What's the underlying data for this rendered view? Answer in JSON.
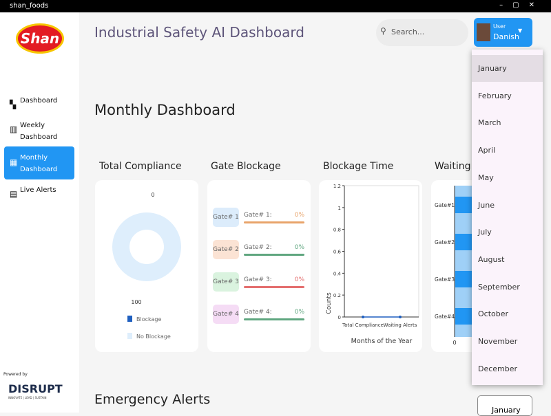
{
  "window": {
    "title": "shan_foods"
  },
  "sidebar": {
    "logo": "Shan",
    "nav": [
      {
        "label": "Dashboard"
      },
      {
        "label": "Weekly Dashboard"
      },
      {
        "label": "Monthly Dashboard"
      },
      {
        "label": "Live Alerts"
      }
    ],
    "active": 2,
    "powered_by": "Powered by",
    "brand": "DISRUPT",
    "brand_tag": "INNOVATE | LEAD | SUSTAIN"
  },
  "header": {
    "title": "Industrial Safety AI Dashboard",
    "search_placeholder": "Search...",
    "user_role": "User",
    "user_name": "Danish"
  },
  "page_title": "Monthly Dashboard",
  "compliance": {
    "title": "Total Compliance",
    "type": "pie",
    "series": [
      {
        "name": "Blockage",
        "color": "#1f5fbf",
        "value": 0,
        "label": "0"
      },
      {
        "name": "No Blockage",
        "color": "#deeefc",
        "value": 100,
        "label": "100"
      }
    ]
  },
  "gate_blockage": {
    "title": "Gate Blockage",
    "gates": [
      {
        "name": "Gate# 1",
        "label": "Gate# 1:",
        "percent": "0%",
        "bg": "#dcecfb",
        "color": "#e8a36a"
      },
      {
        "name": "Gate# 2",
        "label": "Gate# 2:",
        "percent": "0%",
        "bg": "#fbe3d4",
        "color": "#5fa67f"
      },
      {
        "name": "Gate# 3",
        "label": "Gate# 3:",
        "percent": "0%",
        "bg": "#daf3df",
        "color": "#e46f6f"
      },
      {
        "name": "Gate# 4",
        "label": "Gate# 4:",
        "percent": "0%",
        "bg": "#f5dcf5",
        "color": "#5fa67f"
      }
    ]
  },
  "blockage_time": {
    "title": "Blockage Time",
    "type": "line",
    "categories": [
      "Total Compliance",
      "Waiting Alerts"
    ],
    "values": [
      0,
      0
    ],
    "color": "#1f5fbf",
    "ylim": [
      0,
      1.2
    ],
    "yticks": [
      0,
      0.2,
      0.4,
      0.6,
      0.8,
      1,
      1.2
    ],
    "ylabel": "Counts",
    "xlabel": "Months of the Year"
  },
  "waiting_alerts": {
    "title": "Waiting Alerts",
    "categories": [
      "Gate#1",
      "Gate#2",
      "Gate#3",
      "Gate#4"
    ],
    "xticks": [
      0
    ]
  },
  "month_menu": {
    "items": [
      "January",
      "February",
      "March",
      "April",
      "May",
      "June",
      "July",
      "August",
      "September",
      "October",
      "November",
      "December"
    ],
    "selected": 0
  },
  "emergency": {
    "title": "Emergency Alerts",
    "month": "January"
  }
}
